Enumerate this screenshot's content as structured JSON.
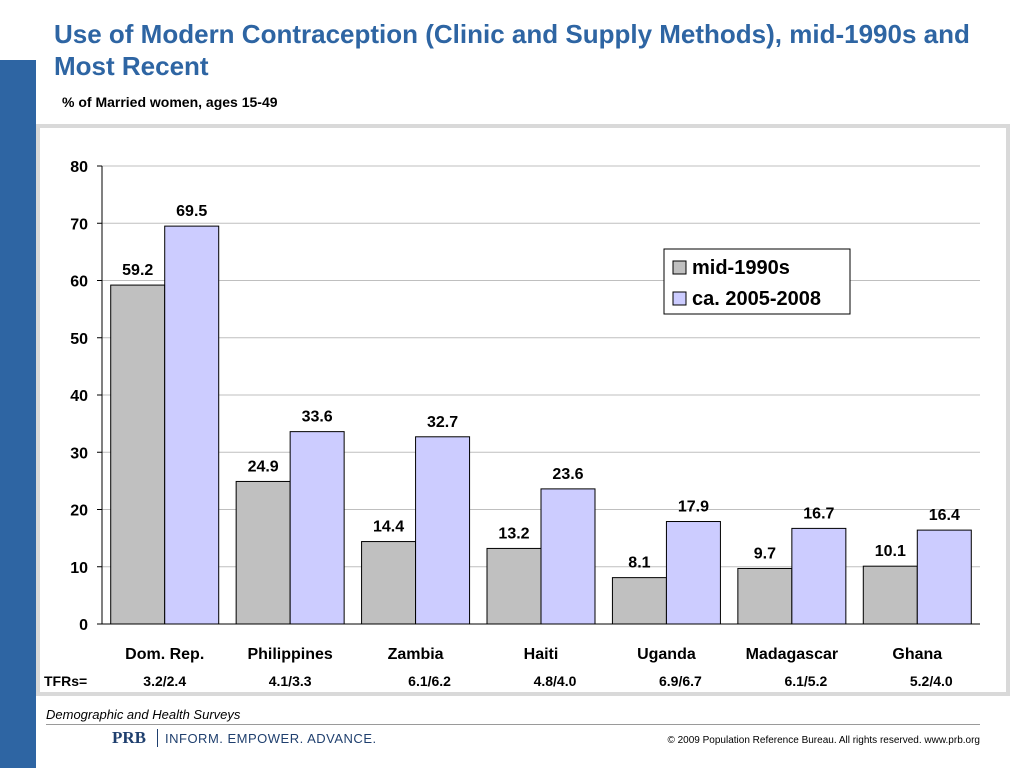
{
  "title": "Use of Modern Contraception (Clinic and Supply Methods), mid-1990s and Most Recent",
  "subtitle": "% of Married women, ages 15-49",
  "source": "Demographic and Health Surveys",
  "footer": {
    "logo": "PRB",
    "tagline": "INFORM. EMPOWER. ADVANCE.",
    "copyright": "© 2009 Population Reference Bureau. All rights reserved. www.prb.org"
  },
  "colors": {
    "title": "#2e65a3",
    "sidebar": "#2e65a3",
    "series_1": "#c0c0c0",
    "series_2": "#ccccff"
  },
  "chart_data": {
    "type": "bar",
    "categories": [
      "Dom. Rep.",
      "Philippines",
      "Zambia",
      "Haiti",
      "Uganda",
      "Madagascar",
      "Ghana"
    ],
    "series": [
      {
        "name": "mid-1990s",
        "values": [
          59.2,
          24.9,
          14.4,
          13.2,
          8.1,
          9.7,
          10.1
        ]
      },
      {
        "name": "ca. 2005-2008",
        "values": [
          69.5,
          33.6,
          32.7,
          23.6,
          17.9,
          16.7,
          16.4
        ]
      }
    ],
    "ylim": [
      0,
      80
    ],
    "yticks": [
      0,
      10,
      20,
      30,
      40,
      50,
      60,
      70,
      80
    ],
    "grid": true,
    "legend": "top-right",
    "tfr_label": "TFRs=",
    "tfr_values": [
      "3.2/2.4",
      "4.1/3.3",
      "6.1/6.2",
      "4.8/4.0",
      "6.9/6.7",
      "6.1/5.2",
      "5.2/4.0"
    ]
  }
}
